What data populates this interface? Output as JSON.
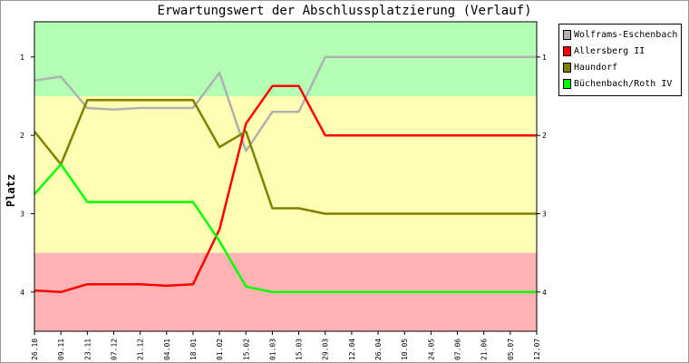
{
  "chart_data": {
    "type": "line",
    "title": "Erwartungswert der Abschlussplatzierung (Verlauf)",
    "ylabel": "Platz",
    "xlabel": "",
    "ylim": [
      0.55,
      4.5
    ],
    "y_inverted": true,
    "y_ticks": [
      "1",
      "2",
      "3",
      "4"
    ],
    "categories": [
      "26.10",
      "09.11",
      "23.11",
      "07.12",
      "21.12",
      "04.01",
      "18.01",
      "01.02",
      "15.02",
      "01.03",
      "15.03",
      "29.03",
      "12.04",
      "26.04",
      "10.05",
      "24.05",
      "07.06",
      "21.06",
      "05.07",
      "12.07"
    ],
    "x_ticks": [
      "26.10",
      "09.11",
      "23.11",
      "07.12",
      "21.12",
      "04.01",
      "18.01",
      "01.02",
      "15.02",
      "01.03",
      "15.03",
      "29.03",
      "12.04",
      "26.04",
      "10.05",
      "24.05",
      "07.06",
      "21.06",
      "05.07",
      "12.07"
    ],
    "bands": [
      {
        "from": 0.55,
        "to": 1.5,
        "color": "#b3ffb3"
      },
      {
        "from": 1.5,
        "to": 3.5,
        "color": "#ffffb3"
      },
      {
        "from": 3.5,
        "to": 4.5,
        "color": "#ffb3b3"
      }
    ],
    "series": [
      {
        "name": "Wolframs-Eschenbach",
        "color": "#b0b0b0",
        "values": [
          1.3,
          1.25,
          1.65,
          1.67,
          1.65,
          1.65,
          1.65,
          1.2,
          2.2,
          1.7,
          1.7,
          1.0,
          1.0,
          1.0,
          1.0,
          1.0,
          1.0,
          1.0,
          1.0,
          1.0
        ]
      },
      {
        "name": "Allersberg II",
        "color": "#ff0000",
        "values": [
          3.98,
          4.0,
          3.9,
          3.9,
          3.9,
          3.92,
          3.9,
          3.2,
          1.85,
          1.37,
          1.37,
          2.0,
          2.0,
          2.0,
          2.0,
          2.0,
          2.0,
          2.0,
          2.0,
          2.0
        ]
      },
      {
        "name": "Haundorf",
        "color": "#808000",
        "values": [
          1.95,
          2.37,
          1.55,
          1.55,
          1.55,
          1.55,
          1.55,
          2.15,
          1.95,
          2.93,
          2.93,
          3.0,
          3.0,
          3.0,
          3.0,
          3.0,
          3.0,
          3.0,
          3.0,
          3.0
        ]
      },
      {
        "name": "Büchenbach/Roth IV",
        "color": "#00ff00",
        "values": [
          2.75,
          2.37,
          2.85,
          2.85,
          2.85,
          2.85,
          2.85,
          3.35,
          3.93,
          4.0,
          4.0,
          4.0,
          4.0,
          4.0,
          4.0,
          4.0,
          4.0,
          4.0,
          4.0,
          4.0
        ]
      }
    ],
    "legend_position": "top-right",
    "grid": false
  }
}
